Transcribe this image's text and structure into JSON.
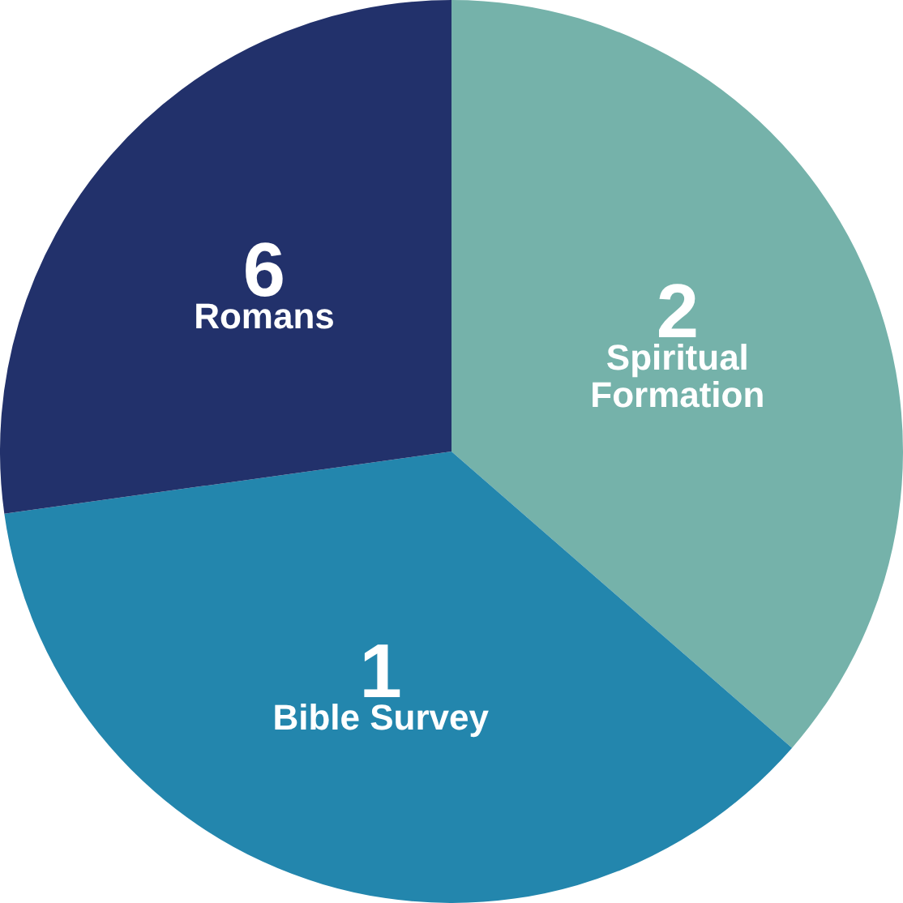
{
  "chart_data": {
    "type": "pie",
    "categories": [
      "2\nSpiritual\nFormation",
      "1\nBible Survey",
      "6\nRomans"
    ],
    "values": [
      36.4,
      36.4,
      27.2
    ],
    "colors": [
      "#75b2aa",
      "#2386ad",
      "#22316b"
    ]
  }
}
